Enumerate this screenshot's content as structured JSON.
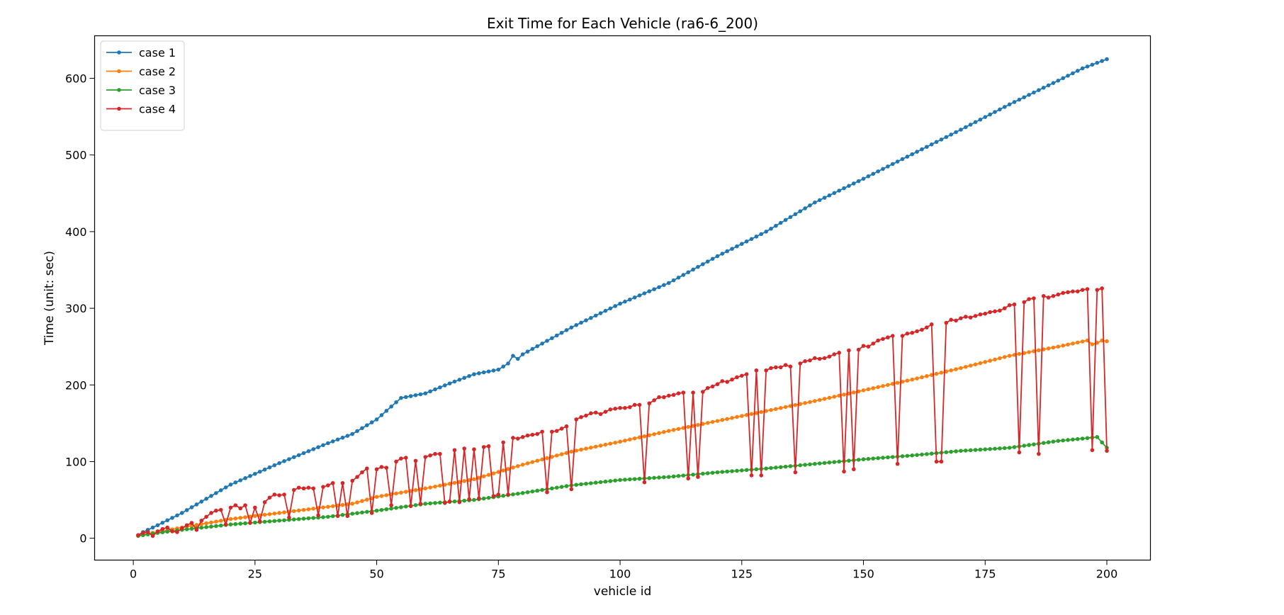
{
  "chart_data": {
    "type": "line",
    "title": "Exit Time for Each Vehicle (ra6-6_200)",
    "xlabel": "vehicle id",
    "ylabel": "Time (unit: sec)",
    "xlim": [
      -7.95,
      208.95
    ],
    "ylim": [
      -28.5,
      655.5
    ],
    "x_ticks": [
      0,
      25,
      50,
      75,
      100,
      125,
      150,
      175,
      200
    ],
    "y_ticks": [
      0,
      100,
      200,
      300,
      400,
      500,
      600
    ],
    "grid": false,
    "legend_position": "top-left",
    "x_start": 1,
    "x_end": 200,
    "series": [
      {
        "name": "case 1",
        "color": "#1f77b4",
        "points": [
          [
            1,
            4
          ],
          [
            2,
            8
          ],
          [
            3,
            11
          ],
          [
            4,
            14
          ],
          [
            5,
            17
          ],
          [
            10,
            33
          ],
          [
            20,
            70
          ],
          [
            30,
            98
          ],
          [
            40,
            124
          ],
          [
            45,
            136
          ],
          [
            50,
            155
          ],
          [
            55,
            183
          ],
          [
            60,
            189
          ],
          [
            65,
            202
          ],
          [
            70,
            214
          ],
          [
            75,
            220
          ],
          [
            77,
            228
          ],
          [
            78,
            238
          ],
          [
            79,
            234
          ],
          [
            80,
            240
          ],
          [
            90,
            275
          ],
          [
            100,
            306
          ],
          [
            110,
            333
          ],
          [
            120,
            368
          ],
          [
            130,
            400
          ],
          [
            140,
            438
          ],
          [
            150,
            469
          ],
          [
            160,
            501
          ],
          [
            170,
            533
          ],
          [
            180,
            566
          ],
          [
            190,
            597
          ],
          [
            195,
            613
          ],
          [
            200,
            625
          ]
        ]
      },
      {
        "name": "case 2",
        "color": "#ff7f0e",
        "points": [
          [
            1,
            4
          ],
          [
            5,
            8
          ],
          [
            10,
            14
          ],
          [
            20,
            25
          ],
          [
            30,
            33
          ],
          [
            40,
            41
          ],
          [
            45,
            45
          ],
          [
            50,
            54
          ],
          [
            60,
            65
          ],
          [
            70,
            77
          ],
          [
            80,
            96
          ],
          [
            90,
            113
          ],
          [
            100,
            126
          ],
          [
            110,
            140
          ],
          [
            120,
            153
          ],
          [
            130,
            166
          ],
          [
            140,
            179
          ],
          [
            150,
            193
          ],
          [
            160,
            207
          ],
          [
            170,
            222
          ],
          [
            180,
            238
          ],
          [
            190,
            250
          ],
          [
            196,
            258
          ],
          [
            197,
            253
          ],
          [
            198,
            255
          ],
          [
            199,
            258
          ],
          [
            200,
            257
          ]
        ]
      },
      {
        "name": "case 3",
        "color": "#2ca02c",
        "points": [
          [
            1,
            3
          ],
          [
            5,
            7
          ],
          [
            10,
            11
          ],
          [
            20,
            18
          ],
          [
            30,
            23
          ],
          [
            40,
            28
          ],
          [
            50,
            36
          ],
          [
            60,
            45
          ],
          [
            70,
            50
          ],
          [
            80,
            59
          ],
          [
            90,
            69
          ],
          [
            100,
            76
          ],
          [
            110,
            80
          ],
          [
            120,
            86
          ],
          [
            130,
            91
          ],
          [
            140,
            97
          ],
          [
            150,
            103
          ],
          [
            160,
            108
          ],
          [
            170,
            114
          ],
          [
            180,
            118
          ],
          [
            190,
            127
          ],
          [
            195,
            130
          ],
          [
            198,
            132
          ],
          [
            200,
            118
          ]
        ]
      },
      {
        "name": "case 4",
        "color": "#d62728",
        "points": [
          [
            1,
            4
          ],
          [
            2,
            7
          ],
          [
            3,
            8
          ],
          [
            4,
            3
          ],
          [
            5,
            9
          ],
          [
            6,
            12
          ],
          [
            7,
            14
          ],
          [
            8,
            9
          ],
          [
            9,
            8
          ],
          [
            10,
            13
          ],
          [
            11,
            17
          ],
          [
            12,
            20
          ],
          [
            13,
            11
          ],
          [
            14,
            23
          ],
          [
            15,
            28
          ],
          [
            16,
            33
          ],
          [
            17,
            36
          ],
          [
            18,
            37
          ],
          [
            19,
            18
          ],
          [
            20,
            40
          ],
          [
            21,
            43
          ],
          [
            22,
            39
          ],
          [
            23,
            43
          ],
          [
            24,
            20
          ],
          [
            25,
            40
          ],
          [
            26,
            22
          ],
          [
            27,
            47
          ],
          [
            28,
            53
          ],
          [
            29,
            57
          ],
          [
            30,
            56
          ],
          [
            31,
            57
          ],
          [
            32,
            27
          ],
          [
            33,
            63
          ],
          [
            34,
            66
          ],
          [
            35,
            65
          ],
          [
            36,
            66
          ],
          [
            37,
            65
          ],
          [
            38,
            30
          ],
          [
            39,
            67
          ],
          [
            40,
            69
          ],
          [
            41,
            72
          ],
          [
            42,
            29
          ],
          [
            43,
            72
          ],
          [
            44,
            29
          ],
          [
            45,
            75
          ],
          [
            46,
            80
          ],
          [
            47,
            86
          ],
          [
            48,
            91
          ],
          [
            49,
            33
          ],
          [
            50,
            90
          ],
          [
            51,
            93
          ],
          [
            52,
            92
          ],
          [
            53,
            43
          ],
          [
            54,
            100
          ],
          [
            55,
            104
          ],
          [
            56,
            105
          ],
          [
            57,
            42
          ],
          [
            58,
            101
          ],
          [
            59,
            45
          ],
          [
            60,
            106
          ],
          [
            61,
            108
          ],
          [
            62,
            110
          ],
          [
            63,
            110
          ],
          [
            64,
            46
          ],
          [
            65,
            48
          ],
          [
            66,
            115
          ],
          [
            67,
            47
          ],
          [
            68,
            117
          ],
          [
            69,
            51
          ],
          [
            70,
            116
          ],
          [
            71,
            52
          ],
          [
            72,
            119
          ],
          [
            73,
            120
          ],
          [
            74,
            55
          ],
          [
            75,
            57
          ],
          [
            76,
            125
          ],
          [
            77,
            57
          ],
          [
            78,
            131
          ],
          [
            79,
            130
          ],
          [
            80,
            132
          ],
          [
            81,
            134
          ],
          [
            82,
            135
          ],
          [
            83,
            136
          ],
          [
            84,
            139
          ],
          [
            85,
            60
          ],
          [
            86,
            139
          ],
          [
            87,
            140
          ],
          [
            88,
            143
          ],
          [
            89,
            146
          ],
          [
            90,
            64
          ],
          [
            91,
            155
          ],
          [
            92,
            158
          ],
          [
            93,
            160
          ],
          [
            94,
            163
          ],
          [
            95,
            164
          ],
          [
            96,
            162
          ],
          [
            97,
            165
          ],
          [
            98,
            168
          ],
          [
            99,
            169
          ],
          [
            100,
            170
          ],
          [
            101,
            170
          ],
          [
            102,
            171
          ],
          [
            103,
            174
          ],
          [
            104,
            174
          ],
          [
            105,
            73
          ],
          [
            106,
            176
          ],
          [
            107,
            180
          ],
          [
            108,
            184
          ],
          [
            109,
            184
          ],
          [
            110,
            186
          ],
          [
            111,
            187
          ],
          [
            112,
            189
          ],
          [
            113,
            190
          ],
          [
            114,
            78
          ],
          [
            115,
            190
          ],
          [
            116,
            80
          ],
          [
            117,
            191
          ],
          [
            118,
            196
          ],
          [
            119,
            198
          ],
          [
            120,
            201
          ],
          [
            121,
            205
          ],
          [
            122,
            204
          ],
          [
            123,
            207
          ],
          [
            124,
            210
          ],
          [
            125,
            212
          ],
          [
            126,
            214
          ],
          [
            127,
            82
          ],
          [
            128,
            219
          ],
          [
            129,
            82
          ],
          [
            130,
            219
          ],
          [
            131,
            222
          ],
          [
            132,
            223
          ],
          [
            133,
            223
          ],
          [
            134,
            226
          ],
          [
            135,
            224
          ],
          [
            136,
            86
          ],
          [
            137,
            228
          ],
          [
            138,
            231
          ],
          [
            139,
            232
          ],
          [
            140,
            235
          ],
          [
            141,
            234
          ],
          [
            142,
            235
          ],
          [
            143,
            237
          ],
          [
            144,
            240
          ],
          [
            145,
            242
          ],
          [
            146,
            87
          ],
          [
            147,
            245
          ],
          [
            148,
            90
          ],
          [
            149,
            246
          ],
          [
            150,
            251
          ],
          [
            151,
            250
          ],
          [
            152,
            254
          ],
          [
            153,
            258
          ],
          [
            154,
            260
          ],
          [
            155,
            262
          ],
          [
            156,
            264
          ],
          [
            157,
            97
          ],
          [
            158,
            264
          ],
          [
            159,
            267
          ],
          [
            160,
            268
          ],
          [
            161,
            270
          ],
          [
            162,
            272
          ],
          [
            163,
            275
          ],
          [
            164,
            279
          ],
          [
            165,
            100
          ],
          [
            166,
            100
          ],
          [
            167,
            281
          ],
          [
            168,
            285
          ],
          [
            169,
            284
          ],
          [
            170,
            287
          ],
          [
            171,
            289
          ],
          [
            172,
            288
          ],
          [
            173,
            290
          ],
          [
            174,
            292
          ],
          [
            175,
            293
          ],
          [
            176,
            295
          ],
          [
            177,
            296
          ],
          [
            178,
            297
          ],
          [
            179,
            300
          ],
          [
            180,
            304
          ],
          [
            181,
            305
          ],
          [
            182,
            112
          ],
          [
            183,
            308
          ],
          [
            184,
            312
          ],
          [
            185,
            313
          ],
          [
            186,
            110
          ],
          [
            187,
            316
          ],
          [
            188,
            314
          ],
          [
            189,
            316
          ],
          [
            190,
            318
          ],
          [
            191,
            320
          ],
          [
            192,
            321
          ],
          [
            193,
            322
          ],
          [
            194,
            322
          ],
          [
            195,
            324
          ],
          [
            196,
            325
          ],
          [
            197,
            115
          ],
          [
            198,
            324
          ],
          [
            199,
            326
          ],
          [
            200,
            114
          ]
        ]
      }
    ]
  }
}
